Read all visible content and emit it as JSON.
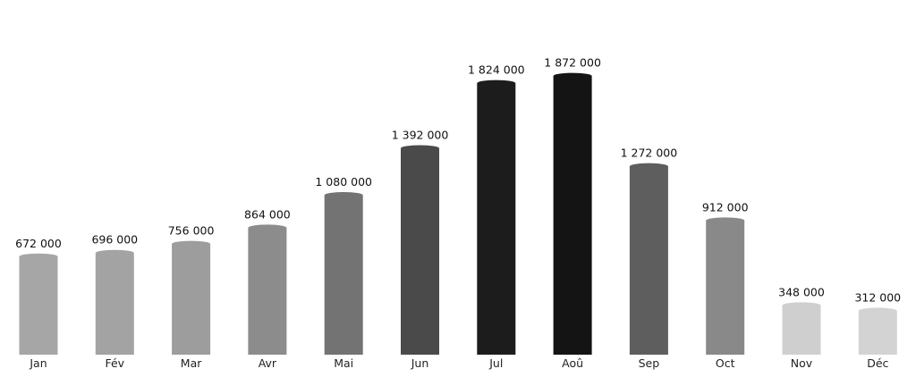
{
  "chart_data": {
    "type": "bar",
    "categories": [
      "Jan",
      "Fév",
      "Mar",
      "Avr",
      "Mai",
      "Jun",
      "Jul",
      "Aoû",
      "Sep",
      "Oct",
      "Nov",
      "Déc"
    ],
    "values": [
      672000,
      696000,
      756000,
      864000,
      1080000,
      1392000,
      1824000,
      1872000,
      1272000,
      912000,
      348000,
      312000
    ],
    "value_labels": [
      "672 000",
      "696 000",
      "756 000",
      "864 000",
      "1 080 000",
      "1 392 000",
      "1 824 000",
      "1 872 000",
      "1 272 000",
      "912 000",
      "348 000",
      "312 000"
    ],
    "bar_colors": [
      "#a6a6a6",
      "#a3a3a3",
      "#9d9d9d",
      "#8c8c8c",
      "#737373",
      "#4a4a4a",
      "#1c1c1c",
      "#141414",
      "#5e5e5e",
      "#898989",
      "#cfcfcf",
      "#d3d3d3"
    ],
    "bar_style": "cylinder",
    "title": "",
    "xlabel": "",
    "ylabel": "",
    "ylim": [
      0,
      2000000
    ],
    "grid": false,
    "legend": "none",
    "axis_visible": false
  }
}
